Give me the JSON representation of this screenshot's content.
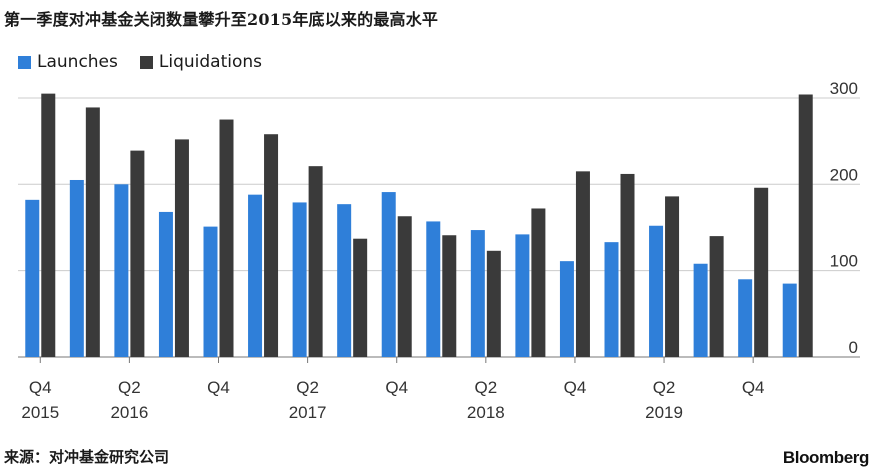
{
  "title": "第一季度对冲基金关闭数量攀升至2015年底以来的最高水平",
  "source": "来源：对冲基金研究公司",
  "brand": "Bloomberg",
  "colors": {
    "launches": "#2f7fd9",
    "liquidations": "#3a3a3a",
    "grid": "#cccccc",
    "axis": "#777777"
  },
  "chart_data": {
    "type": "bar",
    "categories": [
      "Q4 2015",
      "Q1 2016",
      "Q2 2016",
      "Q3 2016",
      "Q4 2016",
      "Q1 2017",
      "Q2 2017",
      "Q3 2017",
      "Q4 2017",
      "Q1 2018",
      "Q2 2018",
      "Q3 2018",
      "Q4 2018",
      "Q1 2019",
      "Q2 2019",
      "Q3 2019",
      "Q4 2019",
      "Q1 2020"
    ],
    "series": [
      {
        "name": "Launches",
        "values": [
          182,
          205,
          200,
          168,
          151,
          188,
          179,
          177,
          191,
          157,
          147,
          142,
          111,
          133,
          152,
          108,
          90,
          85
        ]
      },
      {
        "name": "Liquidations",
        "values": [
          305,
          289,
          239,
          252,
          275,
          258,
          221,
          137,
          163,
          141,
          123,
          172,
          215,
          212,
          186,
          140,
          196,
          304
        ]
      }
    ],
    "ylim": [
      0,
      315
    ],
    "yticks": [
      0,
      100,
      200,
      300
    ],
    "y_axis_side": "right",
    "grid": true,
    "xtick_labels": [
      {
        "index": 0,
        "top": "Q4",
        "bottom": "2015"
      },
      {
        "index": 2,
        "top": "Q2",
        "bottom": "2016"
      },
      {
        "index": 4,
        "top": "Q4",
        "bottom": ""
      },
      {
        "index": 6,
        "top": "Q2",
        "bottom": "2017"
      },
      {
        "index": 8,
        "top": "Q4",
        "bottom": ""
      },
      {
        "index": 10,
        "top": "Q2",
        "bottom": "2018"
      },
      {
        "index": 12,
        "top": "Q4",
        "bottom": ""
      },
      {
        "index": 14,
        "top": "Q2",
        "bottom": "2019"
      },
      {
        "index": 16,
        "top": "Q4",
        "bottom": ""
      }
    ],
    "legend_position": "top-left"
  }
}
